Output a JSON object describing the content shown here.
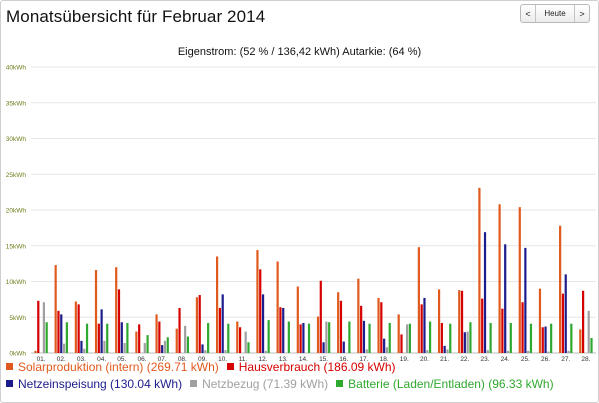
{
  "page": {
    "title": "Monatsübersicht für Februar 2014",
    "nav": {
      "prev": "<",
      "today": "Heute",
      "next": ">"
    }
  },
  "subtitle": "Eigenstrom: (52 % / 136,42 kWh) Autarkie: (64 %)",
  "colors": {
    "solar": "#e05a1e",
    "haus": "#d60000",
    "netzeinspeisung": "#1c1c8c",
    "netzbezug": "#a0a0a0",
    "batterie": "#2fa82f",
    "grid": "#e6e6e6",
    "ylabel": "#6b7d1a"
  },
  "legend": [
    {
      "key": "solar",
      "label": "Solarproduktion (intern) (269.71 kWh)"
    },
    {
      "key": "haus",
      "label": "Hausverbrauch (186.09 kWh)"
    },
    {
      "key": "netzeinspeisung",
      "label": "Netzeinspeisung (130.04 kWh)"
    },
    {
      "key": "netzbezug",
      "label": "Netzbezug (71.39 kWh)"
    },
    {
      "key": "batterie",
      "label": "Batterie (Laden/Entladen) (96.33 kWh)"
    }
  ],
  "chart_data": {
    "type": "bar",
    "y_ticks": [
      "0kWh",
      "5kWh",
      "10kWh",
      "15kWh",
      "20kWh",
      "25kWh",
      "30kWh",
      "35kWh",
      "40kWh"
    ],
    "ylim": [
      0,
      40
    ],
    "grid": true,
    "legend_position": "bottom",
    "categories": [
      "01.",
      "02.",
      "03.",
      "04.",
      "05.",
      "06.",
      "07.",
      "08.",
      "09.",
      "10.",
      "11.",
      "12.",
      "13.",
      "14.",
      "15.",
      "16.",
      "17.",
      "18.",
      "19.",
      "20.",
      "21.",
      "22.",
      "23.",
      "24.",
      "25.",
      "26.",
      "27.",
      "28."
    ],
    "series": [
      {
        "name": "Solarproduktion (intern) (269.71 kWh)",
        "key": "solar",
        "values": [
          0.3,
          12.3,
          7.2,
          11.6,
          12.0,
          3.0,
          5.4,
          3.4,
          7.8,
          13.5,
          4.4,
          14.4,
          12.8,
          9.3,
          5.1,
          8.5,
          10.4,
          7.7,
          5.4,
          14.8,
          8.9,
          8.8,
          23.1,
          20.8,
          20.4,
          9.0,
          17.8,
          3.3
        ]
      },
      {
        "name": "Hausverbrauch (186.09 kWh)",
        "key": "haus",
        "values": [
          7.3,
          5.9,
          6.8,
          4.1,
          8.9,
          4.0,
          4.4,
          6.3,
          8.1,
          6.3,
          3.6,
          11.7,
          6.4,
          4.0,
          10.1,
          7.3,
          6.6,
          7.1,
          2.6,
          6.8,
          4.2,
          8.7,
          7.6,
          6.2,
          7.1,
          3.6,
          8.3,
          8.7
        ]
      },
      {
        "name": "Netzeinspeisung (130.04 kWh)",
        "key": "netzeinspeisung",
        "values": [
          0.0,
          5.4,
          1.7,
          6.1,
          4.3,
          0.0,
          1.1,
          0.0,
          1.2,
          8.2,
          0.0,
          8.2,
          6.3,
          4.2,
          1.5,
          1.6,
          4.5,
          2.0,
          0.0,
          7.7,
          1.0,
          2.9,
          16.9,
          15.2,
          14.7,
          3.7,
          11.0,
          0.0
        ]
      },
      {
        "name": "Netzbezug (71.39 kWh)",
        "key": "netzbezug",
        "values": [
          7.1,
          1.3,
          0.6,
          1.7,
          1.4,
          1.4,
          1.7,
          3.8,
          0.4,
          0.4,
          3.0,
          0.3,
          0.0,
          0.0,
          4.4,
          0.0,
          0.5,
          0.8,
          4.0,
          0.4,
          0.5,
          3.0,
          0.4,
          0.3,
          0.3,
          0.2,
          0.3,
          5.9
        ]
      },
      {
        "name": "Batterie (Laden/Entladen) (96.33 kWh)",
        "key": "batterie",
        "values": [
          4.3,
          4.3,
          4.1,
          4.1,
          4.2,
          2.5,
          2.2,
          2.3,
          4.2,
          4.1,
          1.5,
          4.6,
          4.4,
          4.1,
          4.3,
          4.4,
          4.1,
          4.2,
          4.1,
          4.4,
          4.1,
          4.3,
          4.2,
          4.2,
          4.1,
          4.1,
          4.1,
          2.1
        ]
      }
    ]
  }
}
